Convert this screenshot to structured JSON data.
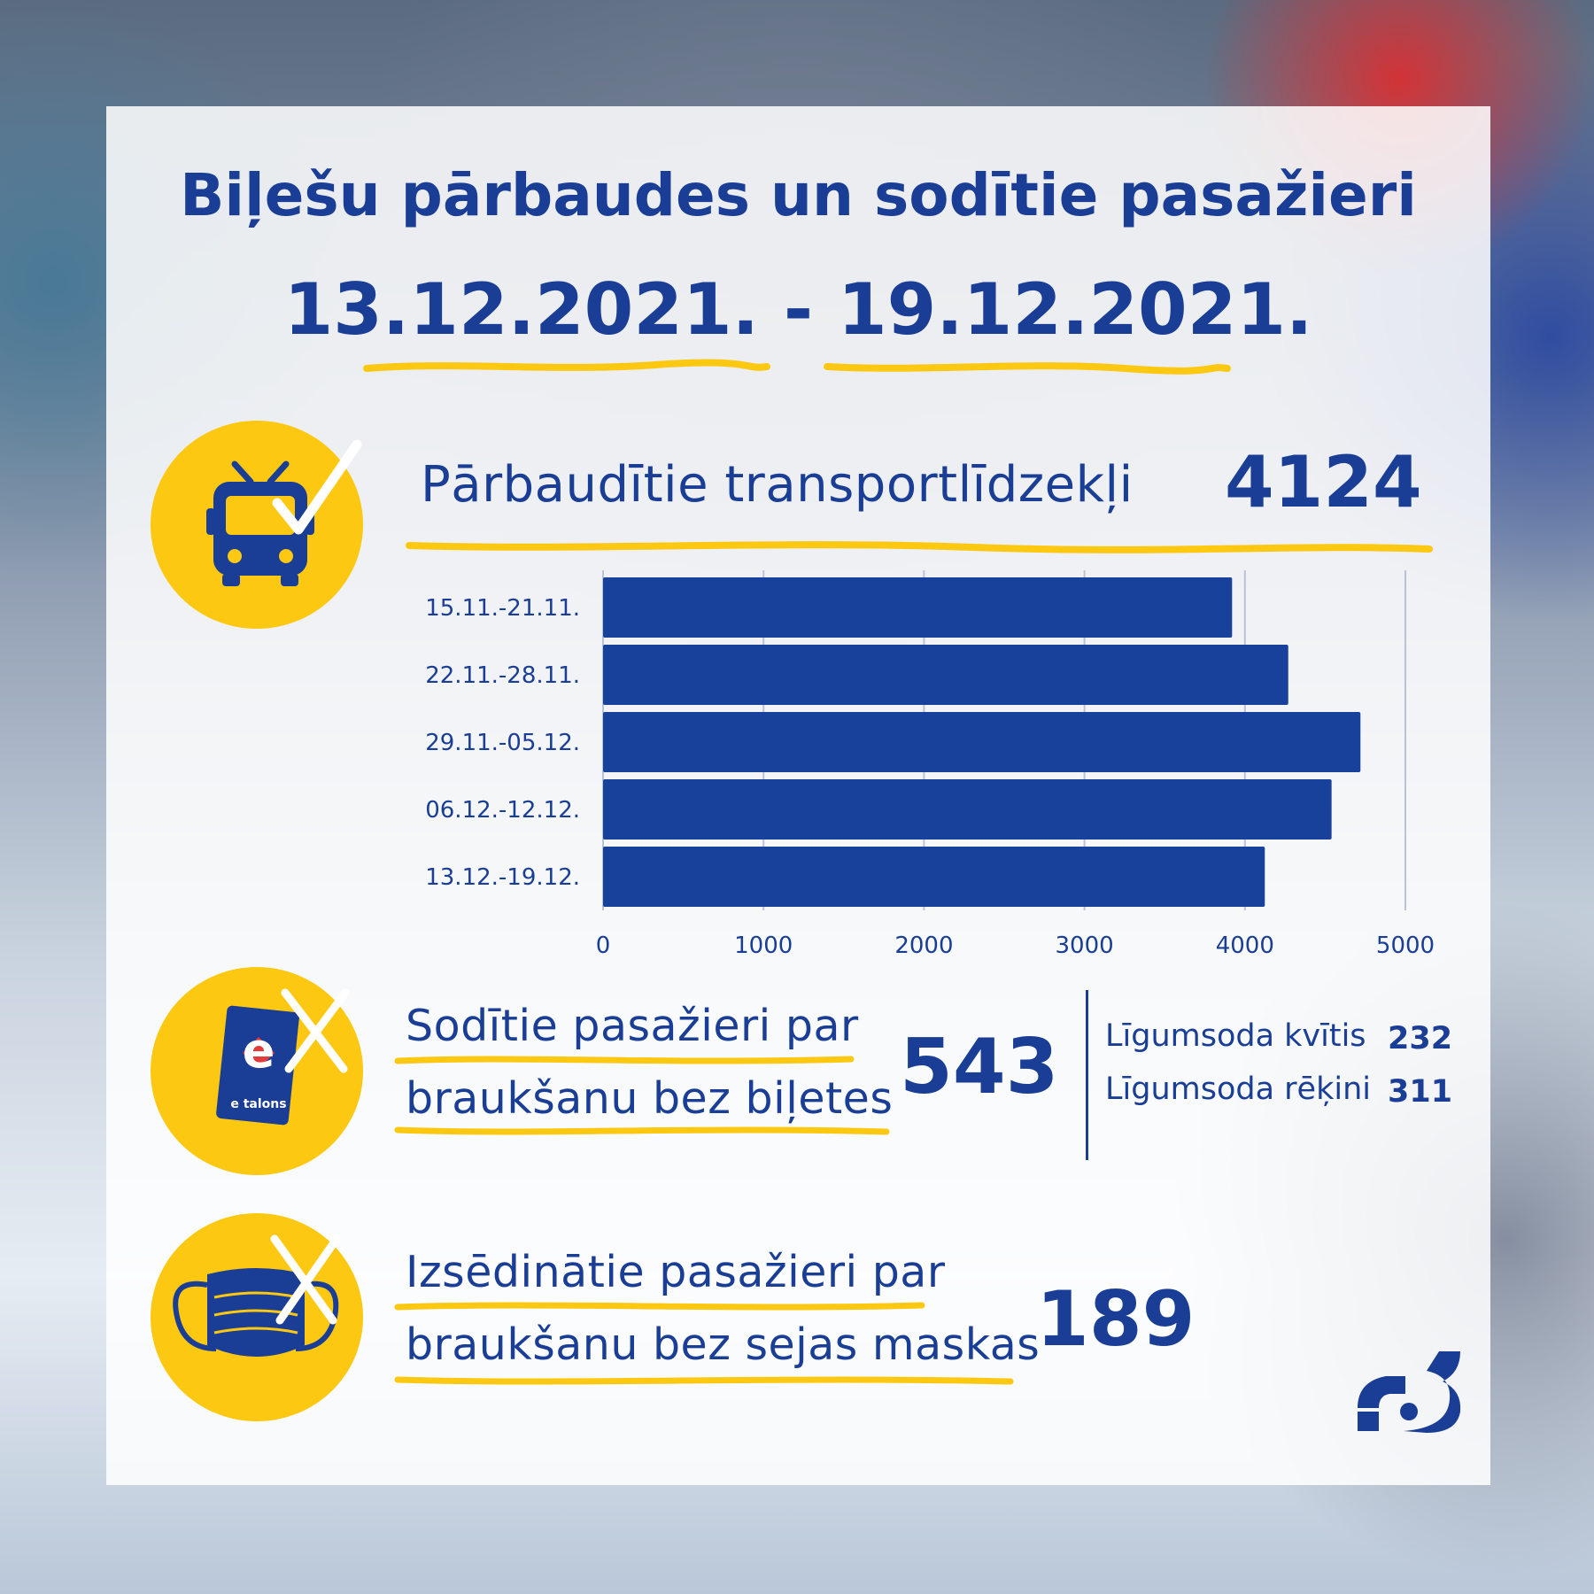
{
  "header": {
    "title": "Biļešu pārbaudes un sodītie pasažieri",
    "date_range": "13.12.2021. - 19.12.2021."
  },
  "colors": {
    "navy": "#1a3e96",
    "yellow": "#fdc812",
    "bar": "#17419b"
  },
  "vehicles": {
    "label": "Pārbaudītie transportlīdzekļi",
    "value": "4124",
    "icon": "trolleybus-check-icon"
  },
  "fined": {
    "label_line1": "Sodītie pasažieri par",
    "label_line2": "braukšanu bez biļetes",
    "value": "543",
    "icon": "etalons-card-cross-icon",
    "card_text": "e talons",
    "breakdown": [
      {
        "label": "Līgumsoda kvītis",
        "value": "232"
      },
      {
        "label": "Līgumsoda rēķini",
        "value": "311"
      }
    ]
  },
  "removed": {
    "label_line1": "Izsēdinātie pasažieri par",
    "label_line2": "braukšanu bez sejas maskas",
    "value": "189",
    "icon": "face-mask-cross-icon"
  },
  "logo": {
    "icon": "rigas-satiksme-logo-icon"
  },
  "chart_data": {
    "type": "bar",
    "orientation": "horizontal",
    "title": "",
    "xlabel": "",
    "ylabel": "",
    "categories": [
      "15.11.-21.11.",
      "22.11.-28.11.",
      "29.11.-05.12.",
      "06.12.-12.12.",
      "13.12.-19.12."
    ],
    "values": [
      3920,
      4270,
      4720,
      4540,
      4124
    ],
    "xlim": [
      0,
      5000
    ],
    "ticks": [
      0,
      1000,
      2000,
      3000,
      4000,
      5000
    ],
    "grid": true,
    "legend": "none"
  }
}
